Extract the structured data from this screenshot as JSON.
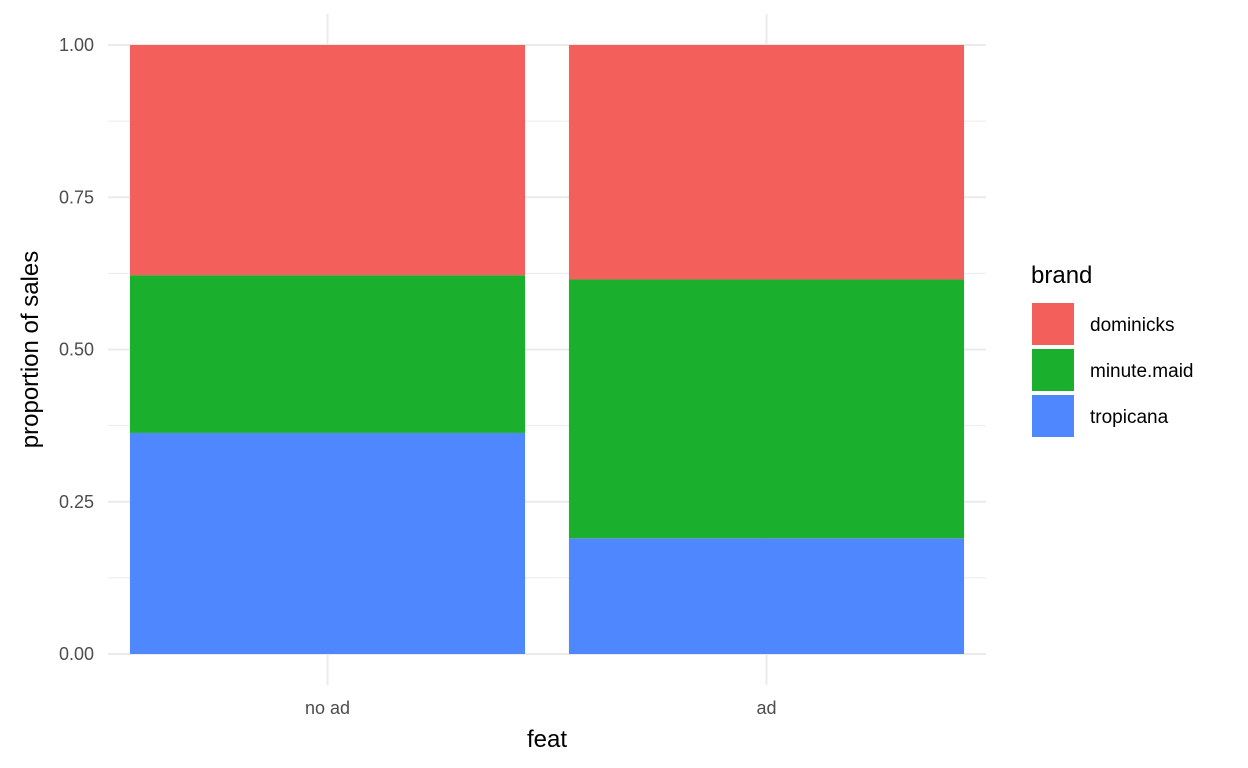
{
  "chart_data": {
    "type": "bar",
    "stacked": true,
    "categories": [
      "no ad",
      "ad"
    ],
    "series": [
      {
        "name": "tropicana",
        "color": "#4f87ff",
        "values": [
          0.363,
          0.19
        ]
      },
      {
        "name": "minute.maid",
        "color": "#1ab02e",
        "values": [
          0.259,
          0.425
        ]
      },
      {
        "name": "dominicks",
        "color": "#f3605b",
        "values": [
          0.378,
          0.385
        ]
      }
    ],
    "xlabel": "feat",
    "ylabel": "proportion of sales",
    "ylim": [
      0,
      1
    ],
    "yticks": [
      {
        "value": 0,
        "label": "0.00"
      },
      {
        "value": 0.25,
        "label": "0.25"
      },
      {
        "value": 0.5,
        "label": "0.50"
      },
      {
        "value": 0.75,
        "label": "0.75"
      },
      {
        "value": 1,
        "label": "1.00"
      }
    ],
    "grid": true,
    "legend": {
      "title": "brand",
      "position": "right",
      "entries": [
        {
          "label": "dominicks",
          "color": "#f3605b"
        },
        {
          "label": "minute.maid",
          "color": "#1ab02e"
        },
        {
          "label": "tropicana",
          "color": "#4f87ff"
        }
      ]
    },
    "grid_color": "#ebebeb"
  }
}
